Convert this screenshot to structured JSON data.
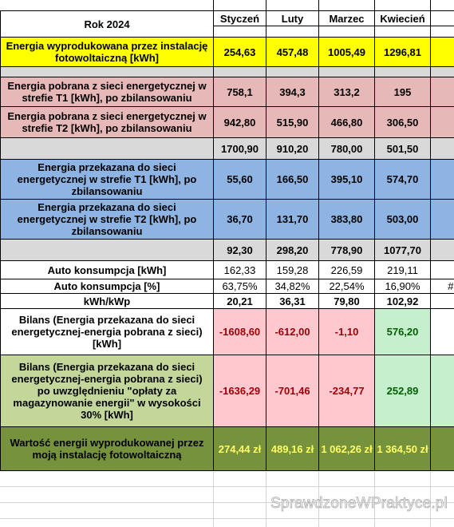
{
  "header": {
    "title": "Rok 2024",
    "months": [
      "Styczeń",
      "Luty",
      "Marzec",
      "Kwiecień"
    ]
  },
  "table": {
    "rows": [
      {
        "label": "Energia wyprodukowana przez instalację fotowoltaiczną [kWh]",
        "values": [
          "254,63",
          "457,48",
          "1005,49",
          "1296,81"
        ]
      },
      {
        "label": "Energia pobrana z sieci energetycznej w strefie T1 [kWh], po zbilansowaniu",
        "values": [
          "758,1",
          "394,3",
          "313,2",
          "195"
        ]
      },
      {
        "label": "Energia pobrana z sieci energetycznej w strefie T2 [kWh], po zbilansowaniu",
        "values": [
          "942,80",
          "515,90",
          "466,80",
          "306,50"
        ]
      },
      {
        "values": [
          "1700,90",
          "910,20",
          "780,00",
          "501,50"
        ]
      },
      {
        "label": "Energia przekazana do sieci energetycznej w strefie T1 [kWh], po zbilansowaniu",
        "values": [
          "55,60",
          "166,50",
          "395,10",
          "574,70"
        ]
      },
      {
        "label": "Energia przekazana do sieci energetycznej w strefie T2 [kWh], po zbilansowaniu",
        "values": [
          "36,70",
          "131,70",
          "383,80",
          "503,00"
        ]
      },
      {
        "values": [
          "92,30",
          "298,20",
          "778,90",
          "1077,70"
        ]
      },
      {
        "label": "Auto konsumpcja [kWh]",
        "values": [
          "162,33",
          "159,28",
          "226,59",
          "219,11"
        ]
      },
      {
        "label": "Auto konsumpcja [%]",
        "values": [
          "63,75%",
          "34,82%",
          "22,54%",
          "16,90%"
        ],
        "overflow": "#D"
      },
      {
        "label": "kWh/kWp",
        "values": [
          "20,21",
          "36,31",
          "79,80",
          "102,92"
        ]
      },
      {
        "label": "Bilans (Energia przekazana do sieci energetycznej-energia pobrana z sieci) [kWh]",
        "values": [
          "-1608,60",
          "-612,00",
          "-1,10",
          "576,20"
        ]
      },
      {
        "label": "Bilans (Energia przekazana do sieci energetycznej-energia pobrana z sieci) po uwzględnieniu \"opłaty za magazynowanie energii\" w wysokości 30% [kWh]",
        "values": [
          "-1636,29",
          "-701,46",
          "-234,77",
          "252,89"
        ]
      },
      {
        "label": "Wartość energii wyprodukowanej przez moją instalację fotowoltaiczną",
        "values": [
          "274,44 zł",
          "489,16 zł",
          "1 062,26 zł",
          "1 364,50 zł"
        ]
      }
    ]
  },
  "watermark": "SprawdzoneWPraktyce.pl"
}
